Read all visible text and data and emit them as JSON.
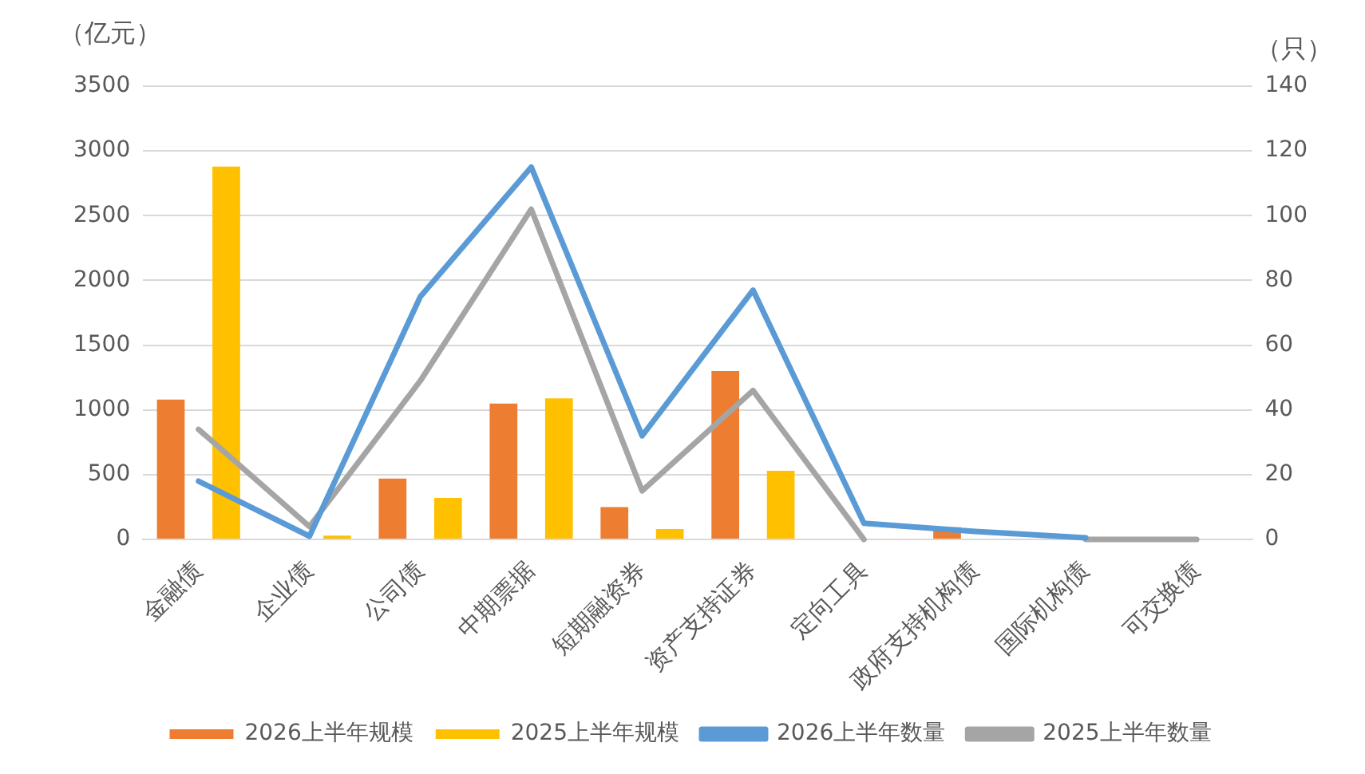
{
  "chart_data": {
    "type": "bar",
    "categories": [
      "金融债",
      "企业债",
      "公司债",
      "中期票据",
      "短期融资券",
      "资产支持证券",
      "定向工具",
      "政府支持机构债",
      "国际机构债",
      "可交换债"
    ],
    "series": [
      {
        "name": "2026上半年规模",
        "color": "#ed7d31",
        "values": [
          1080,
          0,
          470,
          1050,
          250,
          1300,
          null,
          95,
          null,
          null
        ]
      },
      {
        "name": "2025上半年规模",
        "color": "#ffc000",
        "values": [
          2880,
          30,
          320,
          1090,
          80,
          530,
          null,
          0,
          null,
          null
        ]
      },
      {
        "name": "2026上半年数量",
        "type": "line",
        "axis": "y2",
        "color": "#5b9bd5",
        "values": [
          18,
          1,
          75,
          115,
          32,
          77,
          5,
          2.5,
          0.5,
          null
        ]
      },
      {
        "name": "2025上半年数量",
        "type": "line",
        "axis": "y2",
        "color": "#a5a5a5",
        "values": [
          34,
          4,
          49,
          102,
          15,
          46,
          0,
          null,
          0,
          0
        ]
      }
    ],
    "ylabel": "（亿元）",
    "y2label": "（只）",
    "ylim": [
      0,
      3500
    ],
    "yticks": [
      0,
      500,
      1000,
      1500,
      2000,
      2500,
      3000,
      3500
    ],
    "y2lim": [
      0,
      140
    ],
    "y2ticks": [
      0,
      20,
      40,
      60,
      80,
      100,
      120,
      140
    ],
    "grid": "y",
    "legend": "bottom",
    "marker": "none",
    "line_style": "solid"
  }
}
